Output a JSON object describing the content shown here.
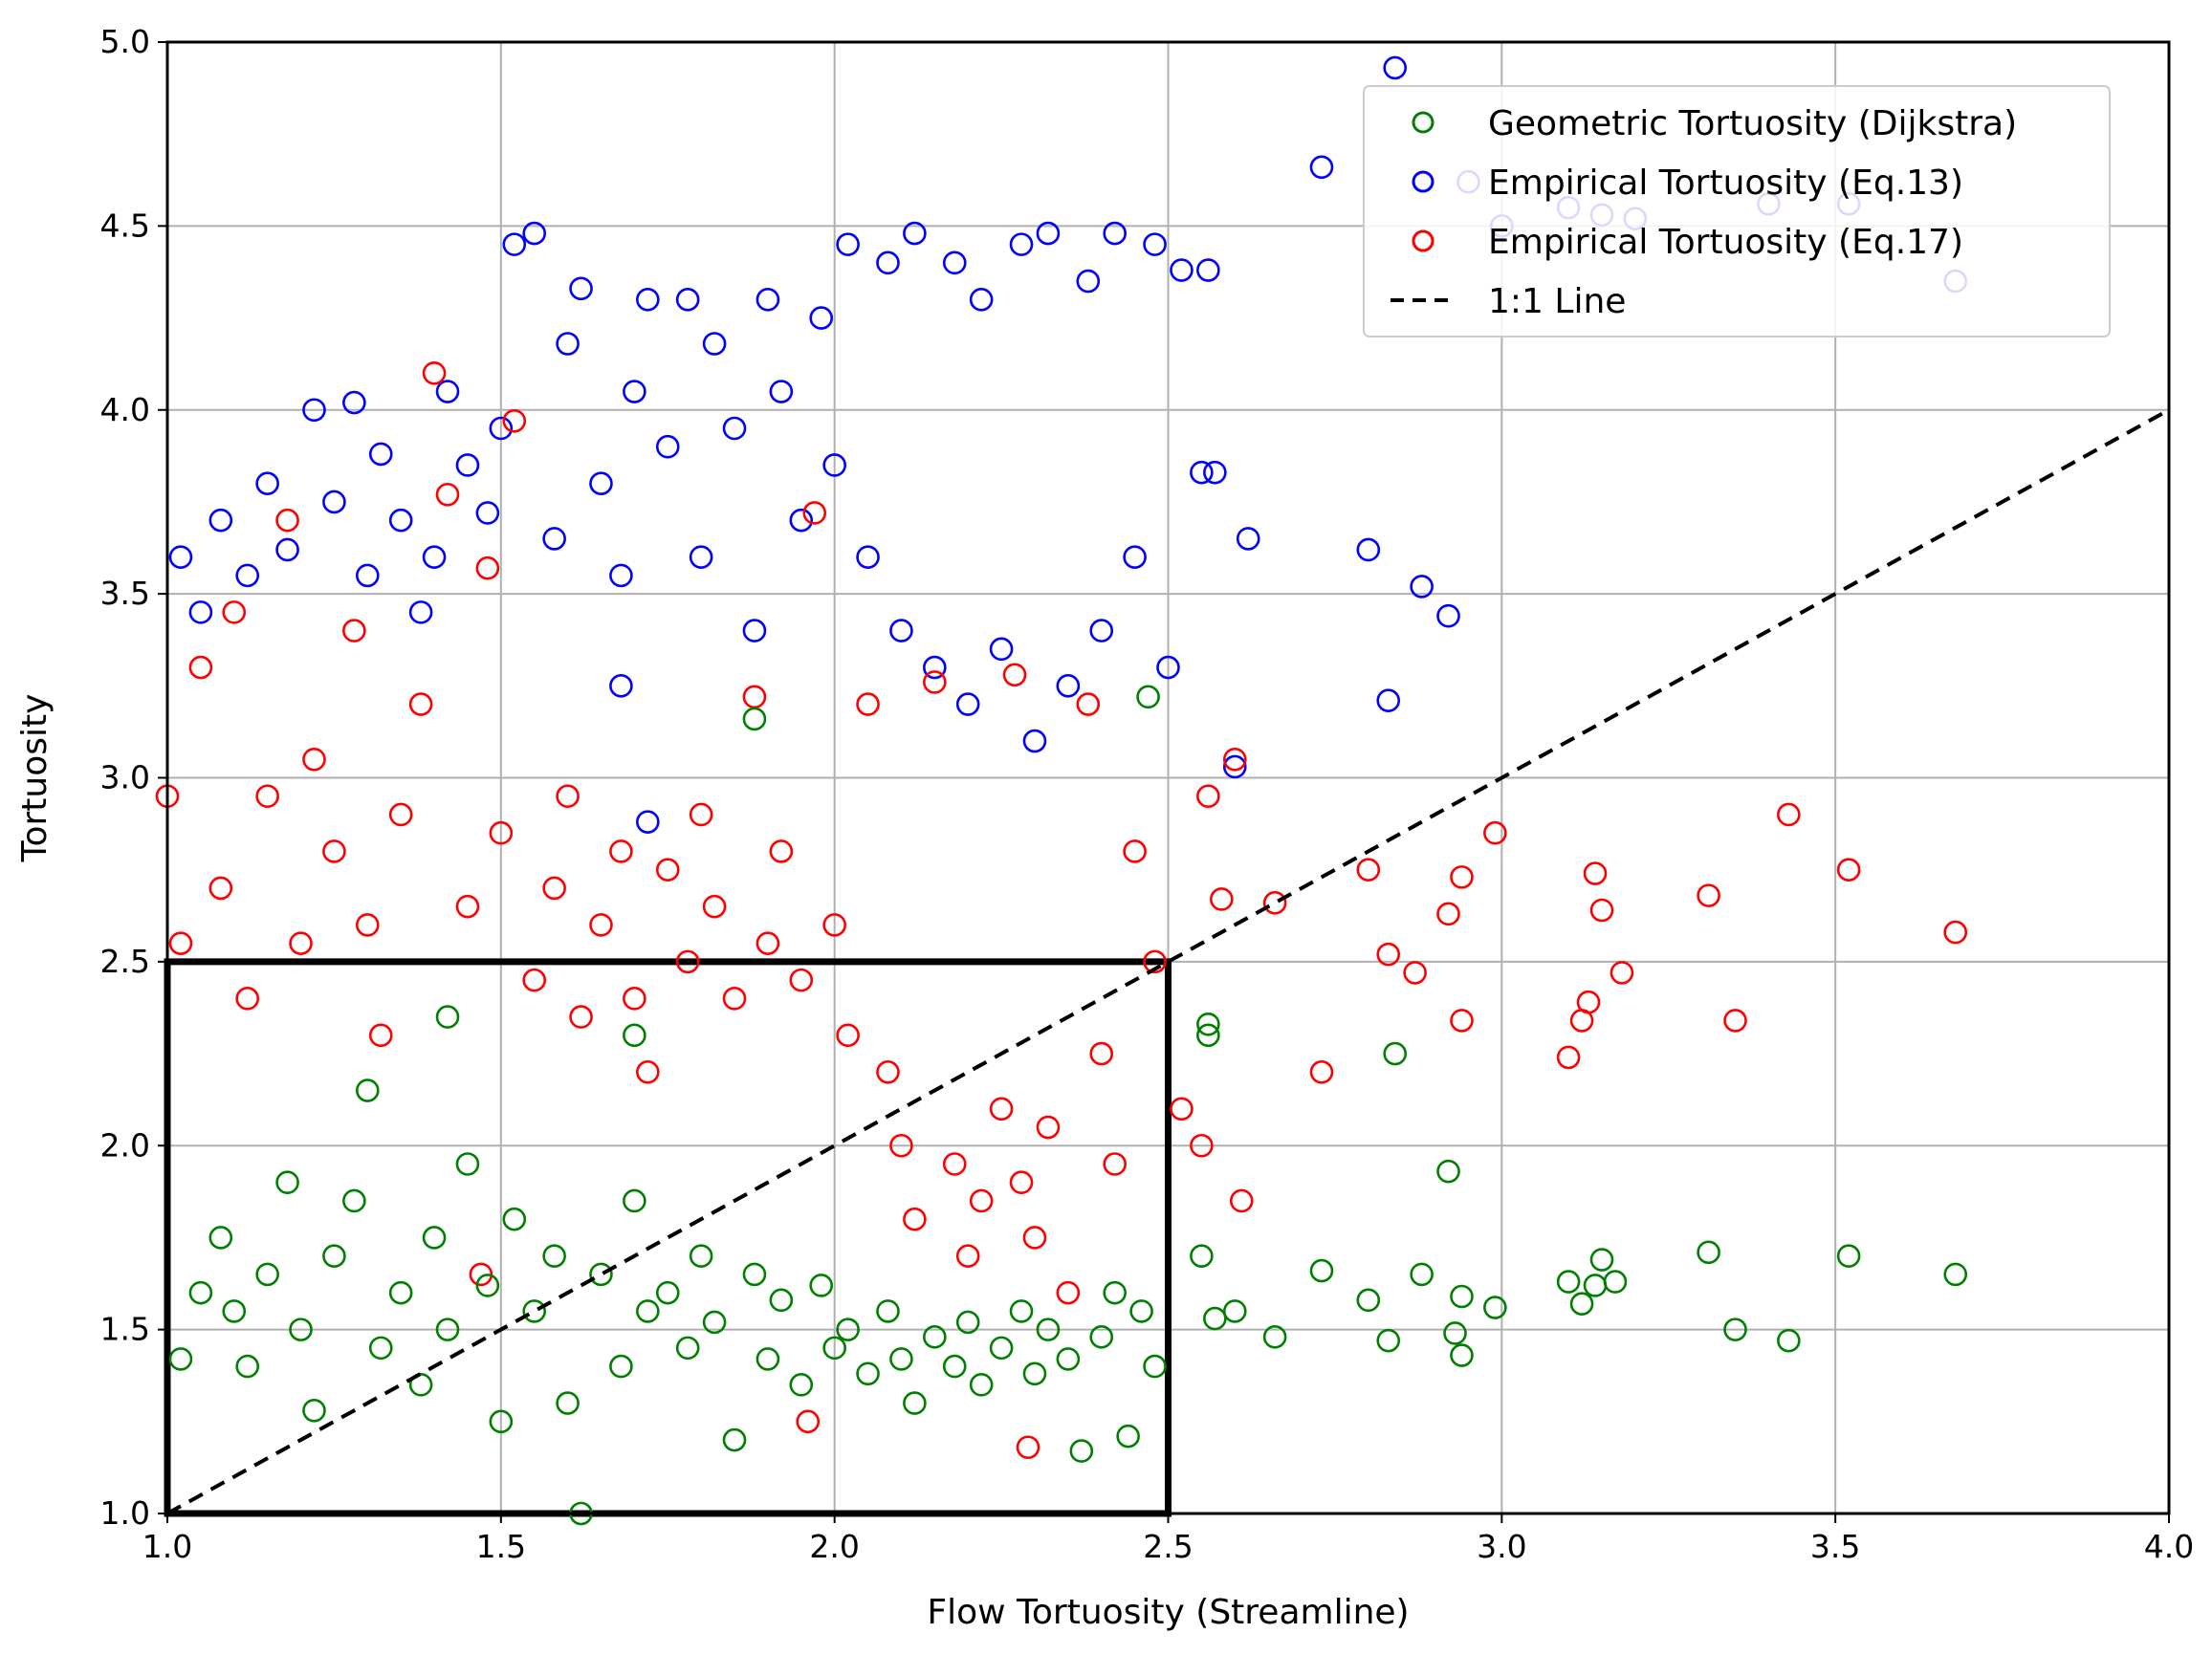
{
  "chart_data": {
    "type": "scatter",
    "title": "",
    "xlabel": "Flow Tortuosity (Streamline)",
    "ylabel": "Tortuosity",
    "xlim": [
      1.0,
      4.0
    ],
    "ylim": [
      1.0,
      5.0
    ],
    "xticks": [
      "1.0",
      "1.5",
      "2.0",
      "2.5",
      "3.0",
      "3.5",
      "4.0"
    ],
    "yticks": [
      "1.0",
      "1.5",
      "2.0",
      "2.5",
      "3.0",
      "3.5",
      "4.0",
      "4.5",
      "5.0"
    ],
    "grid": true,
    "legend_position": "top-right",
    "legend": [
      {
        "label": "Geometric Tortuosity (Dijkstra)",
        "marker": "open-circle",
        "color": "#008000"
      },
      {
        "label": "Empirical Tortuosity (Eq.13)",
        "marker": "open-circle",
        "color": "#0000ff"
      },
      {
        "label": "Empirical Tortuosity (Eq.17)",
        "marker": "open-circle",
        "color": "#ff0000"
      },
      {
        "label": "1:1 Line",
        "marker": "dashed-line",
        "color": "#000000"
      }
    ],
    "reference_line": {
      "name": "1:1 Line",
      "x": [
        1.0,
        4.0
      ],
      "y": [
        1.0,
        4.0
      ],
      "style": "dashed"
    },
    "highlight_box": {
      "x": [
        1.0,
        2.5
      ],
      "y": [
        1.0,
        2.5
      ]
    },
    "series": [
      {
        "name": "Geometric Tortuosity (Dijkstra)",
        "color": "#008000",
        "points": [
          [
            1.02,
            1.42
          ],
          [
            1.05,
            1.6
          ],
          [
            1.08,
            1.75
          ],
          [
            1.1,
            1.55
          ],
          [
            1.12,
            1.4
          ],
          [
            1.15,
            1.65
          ],
          [
            1.18,
            1.9
          ],
          [
            1.2,
            1.5
          ],
          [
            1.22,
            1.28
          ],
          [
            1.25,
            1.7
          ],
          [
            1.28,
            1.85
          ],
          [
            1.3,
            2.15
          ],
          [
            1.32,
            1.45
          ],
          [
            1.35,
            1.6
          ],
          [
            1.38,
            1.35
          ],
          [
            1.4,
            1.75
          ],
          [
            1.42,
            1.5
          ],
          [
            1.45,
            1.95
          ],
          [
            1.48,
            1.62
          ],
          [
            1.5,
            1.25
          ],
          [
            1.52,
            1.8
          ],
          [
            1.55,
            1.55
          ],
          [
            1.58,
            1.7
          ],
          [
            1.6,
            1.3
          ],
          [
            1.62,
            1.0
          ],
          [
            1.65,
            1.65
          ],
          [
            1.68,
            1.4
          ],
          [
            1.7,
            1.85
          ],
          [
            1.72,
            1.55
          ],
          [
            1.75,
            1.6
          ],
          [
            1.78,
            1.45
          ],
          [
            1.8,
            1.7
          ],
          [
            1.82,
            1.52
          ],
          [
            1.85,
            1.2
          ],
          [
            1.88,
            1.65
          ],
          [
            1.9,
            1.42
          ],
          [
            1.92,
            1.58
          ],
          [
            1.95,
            1.35
          ],
          [
            1.98,
            1.62
          ],
          [
            2.0,
            1.45
          ],
          [
            2.02,
            1.5
          ],
          [
            2.05,
            1.38
          ],
          [
            2.08,
            1.55
          ],
          [
            2.1,
            1.42
          ],
          [
            2.12,
            1.3
          ],
          [
            2.15,
            1.48
          ],
          [
            2.18,
            1.4
          ],
          [
            2.2,
            1.52
          ],
          [
            2.22,
            1.35
          ],
          [
            2.25,
            1.45
          ],
          [
            2.28,
            1.55
          ],
          [
            2.3,
            1.38
          ],
          [
            2.32,
            1.5
          ],
          [
            2.35,
            1.42
          ],
          [
            2.37,
            1.17
          ],
          [
            2.4,
            1.48
          ],
          [
            2.42,
            1.6
          ],
          [
            2.44,
            1.21
          ],
          [
            2.46,
            1.55
          ],
          [
            2.48,
            1.4
          ],
          [
            2.55,
            1.7
          ],
          [
            2.57,
            1.53
          ],
          [
            2.6,
            1.55
          ],
          [
            2.66,
            1.48
          ],
          [
            2.73,
            1.66
          ],
          [
            2.8,
            1.58
          ],
          [
            2.83,
            1.47
          ],
          [
            2.84,
            2.25
          ],
          [
            2.88,
            1.65
          ],
          [
            2.92,
            1.93
          ],
          [
            2.93,
            1.49
          ],
          [
            2.94,
            1.43
          ],
          [
            2.94,
            1.59
          ],
          [
            2.99,
            1.56
          ],
          [
            3.1,
            1.63
          ],
          [
            3.12,
            1.57
          ],
          [
            3.14,
            1.62
          ],
          [
            3.15,
            1.69
          ],
          [
            3.17,
            1.63
          ],
          [
            3.31,
            1.71
          ],
          [
            3.35,
            1.5
          ],
          [
            3.43,
            1.47
          ],
          [
            3.52,
            1.7
          ],
          [
            3.68,
            1.65
          ],
          [
            1.88,
            3.16
          ],
          [
            2.47,
            3.22
          ],
          [
            2.56,
            2.33
          ],
          [
            2.56,
            2.3
          ],
          [
            1.42,
            2.35
          ],
          [
            1.7,
            2.3
          ]
        ]
      },
      {
        "name": "Empirical Tortuosity (Eq.13)",
        "color": "#0000ff",
        "points": [
          [
            1.02,
            3.6
          ],
          [
            1.05,
            3.45
          ],
          [
            1.08,
            3.7
          ],
          [
            1.12,
            3.55
          ],
          [
            1.15,
            3.8
          ],
          [
            1.18,
            3.62
          ],
          [
            1.22,
            4.0
          ],
          [
            1.25,
            3.75
          ],
          [
            1.28,
            4.02
          ],
          [
            1.3,
            3.55
          ],
          [
            1.32,
            3.88
          ],
          [
            1.35,
            3.7
          ],
          [
            1.38,
            3.45
          ],
          [
            1.4,
            3.6
          ],
          [
            1.42,
            4.05
          ],
          [
            1.45,
            3.85
          ],
          [
            1.48,
            3.72
          ],
          [
            1.5,
            3.95
          ],
          [
            1.52,
            4.45
          ],
          [
            1.55,
            4.48
          ],
          [
            1.58,
            3.65
          ],
          [
            1.6,
            4.18
          ],
          [
            1.62,
            4.33
          ],
          [
            1.65,
            3.8
          ],
          [
            1.68,
            3.55
          ],
          [
            1.7,
            4.05
          ],
          [
            1.72,
            4.3
          ],
          [
            1.75,
            3.9
          ],
          [
            1.78,
            4.3
          ],
          [
            1.8,
            3.6
          ],
          [
            1.82,
            4.18
          ],
          [
            1.85,
            3.95
          ],
          [
            1.88,
            3.4
          ],
          [
            1.9,
            4.3
          ],
          [
            1.92,
            4.05
          ],
          [
            1.95,
            3.7
          ],
          [
            1.98,
            4.25
          ],
          [
            2.0,
            3.85
          ],
          [
            2.02,
            4.45
          ],
          [
            2.05,
            3.6
          ],
          [
            2.08,
            4.4
          ],
          [
            2.1,
            3.4
          ],
          [
            2.12,
            4.48
          ],
          [
            2.15,
            3.3
          ],
          [
            2.18,
            4.4
          ],
          [
            2.2,
            3.2
          ],
          [
            2.22,
            4.3
          ],
          [
            2.25,
            3.35
          ],
          [
            2.28,
            4.45
          ],
          [
            2.3,
            3.1
          ],
          [
            2.32,
            4.48
          ],
          [
            2.35,
            3.25
          ],
          [
            2.38,
            4.35
          ],
          [
            2.4,
            3.4
          ],
          [
            2.42,
            4.48
          ],
          [
            2.45,
            3.6
          ],
          [
            2.48,
            4.45
          ],
          [
            2.5,
            3.3
          ],
          [
            2.52,
            4.38
          ],
          [
            2.55,
            3.83
          ],
          [
            2.56,
            4.38
          ],
          [
            2.57,
            3.83
          ],
          [
            2.6,
            3.03
          ],
          [
            2.62,
            3.65
          ],
          [
            2.73,
            4.66
          ],
          [
            2.8,
            3.62
          ],
          [
            2.83,
            3.21
          ],
          [
            2.84,
            4.93
          ],
          [
            2.88,
            3.52
          ],
          [
            2.92,
            3.44
          ],
          [
            2.95,
            4.62
          ],
          [
            3.0,
            4.5
          ],
          [
            3.1,
            4.55
          ],
          [
            3.15,
            4.53
          ],
          [
            3.2,
            4.52
          ],
          [
            3.4,
            4.56
          ],
          [
            3.52,
            4.56
          ],
          [
            3.68,
            4.35
          ],
          [
            1.68,
            3.25
          ],
          [
            1.72,
            2.88
          ]
        ]
      },
      {
        "name": "Empirical Tortuosity (Eq.17)",
        "color": "#ff0000",
        "points": [
          [
            1.0,
            2.95
          ],
          [
            1.02,
            2.55
          ],
          [
            1.05,
            3.3
          ],
          [
            1.08,
            2.7
          ],
          [
            1.1,
            3.45
          ],
          [
            1.12,
            2.4
          ],
          [
            1.15,
            2.95
          ],
          [
            1.18,
            3.7
          ],
          [
            1.2,
            2.55
          ],
          [
            1.22,
            3.05
          ],
          [
            1.25,
            2.8
          ],
          [
            1.28,
            3.4
          ],
          [
            1.3,
            2.6
          ],
          [
            1.32,
            2.3
          ],
          [
            1.35,
            2.9
          ],
          [
            1.38,
            3.2
          ],
          [
            1.4,
            4.1
          ],
          [
            1.42,
            3.77
          ],
          [
            1.45,
            2.65
          ],
          [
            1.48,
            3.57
          ],
          [
            1.5,
            2.85
          ],
          [
            1.52,
            3.97
          ],
          [
            1.55,
            2.45
          ],
          [
            1.58,
            2.7
          ],
          [
            1.6,
            2.95
          ],
          [
            1.62,
            2.35
          ],
          [
            1.65,
            2.6
          ],
          [
            1.68,
            2.8
          ],
          [
            1.7,
            2.4
          ],
          [
            1.72,
            2.2
          ],
          [
            1.75,
            2.75
          ],
          [
            1.78,
            2.5
          ],
          [
            1.8,
            2.9
          ],
          [
            1.82,
            2.65
          ],
          [
            1.85,
            2.4
          ],
          [
            1.88,
            3.22
          ],
          [
            1.9,
            2.55
          ],
          [
            1.92,
            2.8
          ],
          [
            1.95,
            2.45
          ],
          [
            1.97,
            3.72
          ],
          [
            2.0,
            2.6
          ],
          [
            2.02,
            2.3
          ],
          [
            2.05,
            3.2
          ],
          [
            2.08,
            2.2
          ],
          [
            2.1,
            2.0
          ],
          [
            2.12,
            1.8
          ],
          [
            2.15,
            3.26
          ],
          [
            2.18,
            1.95
          ],
          [
            2.2,
            1.7
          ],
          [
            2.22,
            1.85
          ],
          [
            2.25,
            2.1
          ],
          [
            2.27,
            3.28
          ],
          [
            2.28,
            1.9
          ],
          [
            2.3,
            1.75
          ],
          [
            2.32,
            2.05
          ],
          [
            2.35,
            1.6
          ],
          [
            2.38,
            3.2
          ],
          [
            2.4,
            2.25
          ],
          [
            2.42,
            1.95
          ],
          [
            2.45,
            2.8
          ],
          [
            2.48,
            2.5
          ],
          [
            2.52,
            2.1
          ],
          [
            2.55,
            2.0
          ],
          [
            2.56,
            2.95
          ],
          [
            2.58,
            2.67
          ],
          [
            2.6,
            3.05
          ],
          [
            2.61,
            1.85
          ],
          [
            2.66,
            2.66
          ],
          [
            2.73,
            2.2
          ],
          [
            2.8,
            2.75
          ],
          [
            2.83,
            2.52
          ],
          [
            2.87,
            2.47
          ],
          [
            2.92,
            2.63
          ],
          [
            2.94,
            2.73
          ],
          [
            2.94,
            2.34
          ],
          [
            2.99,
            2.85
          ],
          [
            3.1,
            2.24
          ],
          [
            3.12,
            2.34
          ],
          [
            3.13,
            2.39
          ],
          [
            3.14,
            2.74
          ],
          [
            3.15,
            2.64
          ],
          [
            3.18,
            2.47
          ],
          [
            3.31,
            2.68
          ],
          [
            3.35,
            2.34
          ],
          [
            3.43,
            2.9
          ],
          [
            3.52,
            2.75
          ],
          [
            3.68,
            2.58
          ],
          [
            1.96,
            1.25
          ],
          [
            2.29,
            1.18
          ],
          [
            1.47,
            1.65
          ]
        ]
      }
    ]
  }
}
